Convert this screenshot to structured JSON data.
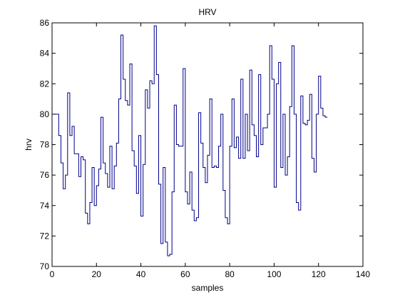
{
  "chart_data": {
    "type": "line",
    "subtype": "stairs",
    "title": "HRV",
    "xlabel": "samples",
    "ylabel": "hrv",
    "xlim": [
      0,
      140
    ],
    "ylim": [
      70,
      86
    ],
    "xticks": [
      0,
      20,
      40,
      60,
      80,
      100,
      120,
      140
    ],
    "yticks": [
      70,
      72,
      74,
      76,
      78,
      80,
      82,
      84,
      86
    ],
    "grid": false,
    "legend": false,
    "colors": {
      "line": "#00008b",
      "axes": "#000000",
      "background": "#ffffff"
    },
    "series": [
      {
        "values": [
          80.0,
          80.0,
          78.6,
          76.8,
          75.1,
          76.0,
          81.4,
          78.6,
          79.2,
          77.4,
          77.4,
          75.9,
          77.2,
          77.0,
          73.5,
          72.8,
          74.2,
          76.5,
          74.0,
          75.3,
          76.4,
          79.8,
          76.8,
          76.1,
          75.2,
          77.9,
          75.1,
          76.6,
          78.1,
          81.0,
          85.2,
          82.3,
          80.9,
          80.6,
          83.3,
          77.6,
          76.6,
          74.8,
          78.6,
          73.3,
          76.7,
          81.6,
          80.4,
          82.2,
          82.0,
          85.8,
          82.6,
          75.4,
          71.5,
          76.5,
          71.6,
          70.7,
          70.8,
          74.9,
          80.6,
          78.0,
          77.9,
          77.9,
          83.0,
          74.9,
          74.1,
          76.2,
          73.7,
          73.0,
          73.2,
          80.1,
          78.1,
          76.5,
          75.5,
          77.3,
          81.0,
          76.5,
          76.6,
          76.5,
          77.9,
          80.0,
          75.0,
          73.2,
          72.8,
          77.9,
          81.0,
          77.8,
          78.5,
          77.1,
          82.3,
          77.1,
          80.0,
          77.6,
          82.9,
          79.3,
          78.6,
          77.2,
          82.6,
          78.0,
          79.1,
          79.1,
          80.0,
          84.5,
          82.3,
          75.2,
          82.0,
          83.4,
          76.5,
          80.0,
          76.0,
          77.2,
          80.5,
          84.5,
          80.0,
          74.2,
          73.7,
          81.2,
          79.4,
          79.3,
          79.6,
          81.3,
          77.1,
          76.2,
          80.0,
          82.5,
          80.4,
          79.9,
          79.8
        ]
      }
    ]
  }
}
